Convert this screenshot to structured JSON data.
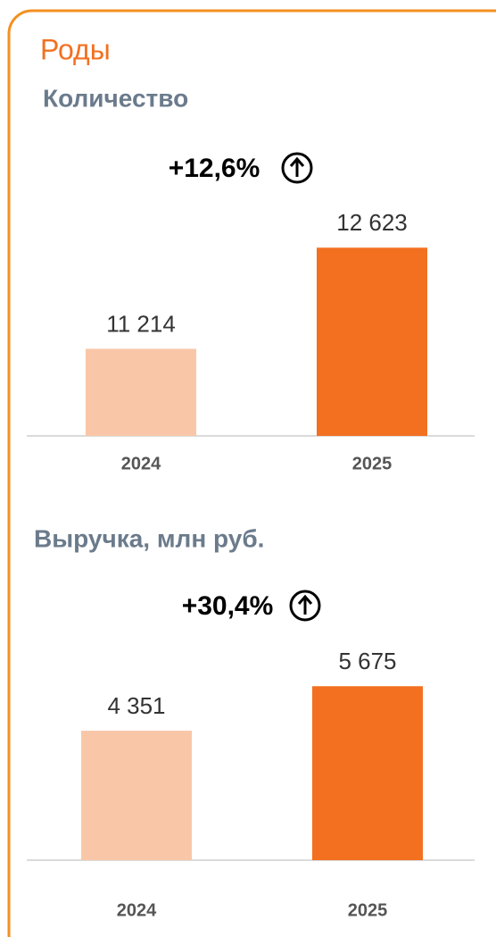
{
  "title": "Роды",
  "chart_data": [
    {
      "type": "bar",
      "title": "Количество",
      "annotation": "+12,6%",
      "categories": [
        "2024",
        "2025"
      ],
      "values": [
        11214,
        12623
      ],
      "value_labels": [
        "11 214",
        "12 623"
      ],
      "colors": [
        "#f9c7a8",
        "#f37021"
      ],
      "ylim": [
        10000,
        13000
      ]
    },
    {
      "type": "bar",
      "title": "Выручка, млн руб.",
      "annotation": "+30,4%",
      "categories": [
        "2024",
        "2025"
      ],
      "values": [
        4351,
        5675
      ],
      "value_labels": [
        "4 351",
        "5 675"
      ],
      "colors": [
        "#f9c7a8",
        "#f37021"
      ],
      "ylim": [
        500,
        6000
      ]
    }
  ]
}
